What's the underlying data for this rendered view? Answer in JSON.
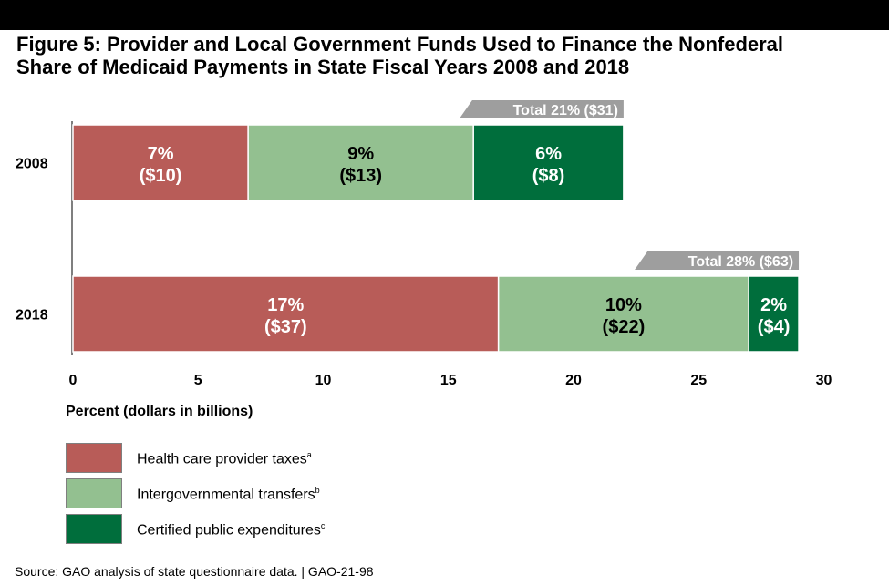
{
  "figure": {
    "title_line1": "Figure 5: Provider and Local Government Funds Used to Finance the Nonfederal",
    "title_line2": "Share of Medicaid Payments in State Fiscal Years 2008 and 2018",
    "source": "Source: GAO analysis of state questionnaire data.  |  GAO-21-98"
  },
  "colors": {
    "provider_taxes": "#b85c58",
    "intergovernmental": "#93c090",
    "cpe": "#006e3c",
    "total_tag": "#9e9e9e"
  },
  "chart_data": {
    "type": "bar",
    "orientation": "horizontal",
    "stacked": true,
    "categories": [
      "2008",
      "2018"
    ],
    "xlabel": "Percent (dollars in billions)",
    "xlim": [
      0,
      30
    ],
    "xticks": [
      "0",
      "5",
      "10",
      "15",
      "20",
      "25",
      "30"
    ],
    "grid": false,
    "legend_position": "bottom-left",
    "series": [
      {
        "name": "Health care provider taxes",
        "superscript": "a",
        "values": [
          7,
          17
        ],
        "labels_pct": [
          "7%",
          "17%"
        ],
        "labels_dollars": [
          "($10)",
          "($37)"
        ],
        "color": "#b85c58",
        "text_color": "#ffffff"
      },
      {
        "name": "Intergovernmental transfers",
        "superscript": "b",
        "values": [
          9,
          10
        ],
        "labels_pct": [
          "9%",
          "10%"
        ],
        "labels_dollars": [
          "($13)",
          "($22)"
        ],
        "color": "#93c090",
        "text_color": "#000000"
      },
      {
        "name": "Certified public expenditures",
        "superscript": "c",
        "values": [
          6,
          2
        ],
        "labels_pct": [
          "6%",
          "2%"
        ],
        "labels_dollars": [
          "($8)",
          "($4)"
        ],
        "color": "#006e3c",
        "text_color": "#ffffff"
      }
    ],
    "totals": [
      "Total 21% ($31)",
      "Total 28% ($63)"
    ]
  }
}
